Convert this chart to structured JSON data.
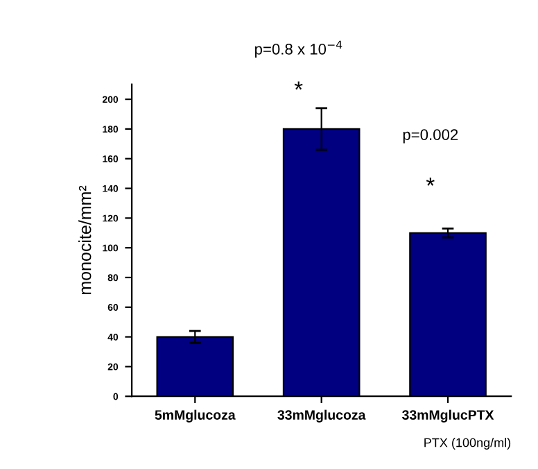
{
  "chart_data": {
    "type": "bar",
    "ylabel": "monocite/mm²",
    "xlabel": "PTX (100ng/ml)",
    "categories": [
      "5mMglucoza",
      "33mMglucoza",
      "33mMglucPTX"
    ],
    "values": [
      40,
      180,
      110
    ],
    "errors": [
      4,
      14,
      3
    ],
    "color": "#000080",
    "ylim": [
      0,
      210
    ],
    "yticks": [
      0,
      20,
      40,
      60,
      80,
      100,
      120,
      140,
      160,
      180,
      200
    ],
    "grid": false,
    "annotations": [
      "p=0.8 x 10$^{−4}$",
      "*",
      "p=0.002",
      "*"
    ]
  }
}
